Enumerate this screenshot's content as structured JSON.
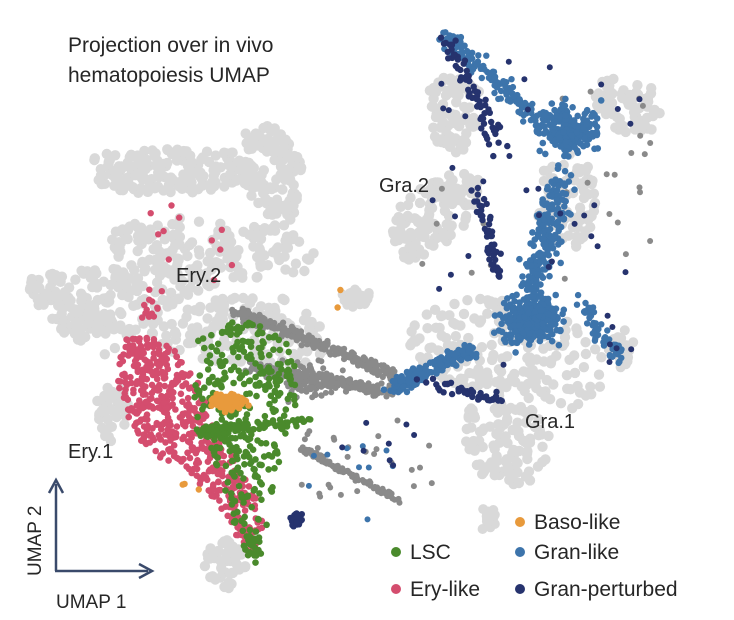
{
  "chart_data": {
    "type": "scatter",
    "title_lines": [
      "Projection over in vivo",
      "hematopoiesis UMAP"
    ],
    "xlabel": "UMAP 1",
    "ylabel": "UMAP 2",
    "background_color": "#d9d9d9",
    "cluster_annotations": [
      "Gra.2",
      "Ery.2",
      "Gra.1",
      "Ery.1"
    ],
    "series": [
      {
        "key": "baso",
        "name": "Baso-like",
        "color": "#e89a3c"
      },
      {
        "key": "lsc",
        "name": "LSC",
        "color": "#4a8a2c"
      },
      {
        "key": "gran",
        "name": "Gran-like",
        "color": "#3d74ab"
      },
      {
        "key": "ery",
        "name": "Ery-like",
        "color": "#d44d6e"
      },
      {
        "key": "perturbed",
        "name": "Gran-perturbed",
        "color": "#26336e"
      },
      {
        "key": "unassigned",
        "color": "#8a8a8a"
      }
    ],
    "legend_placement": "bottom-right"
  }
}
